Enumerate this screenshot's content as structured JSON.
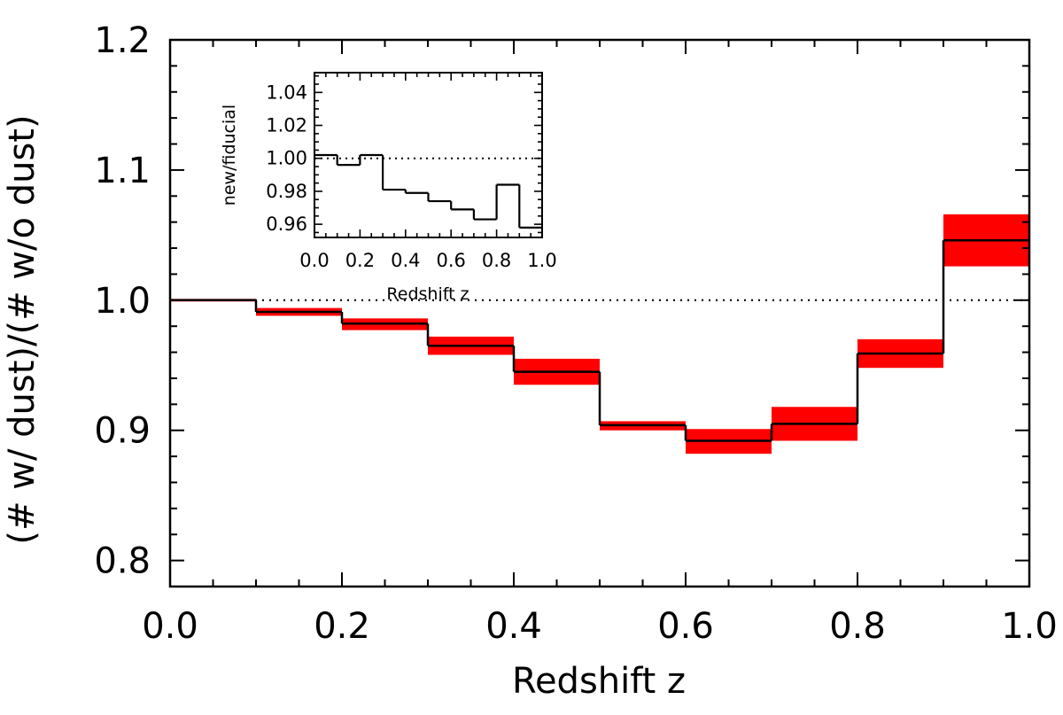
{
  "chart_data": [
    {
      "type": "step",
      "role": "main",
      "title": "",
      "xlabel": "Redshift z",
      "ylabel": "(# w/ dust)/(# w/o dust)",
      "xlim": [
        0.0,
        1.0
      ],
      "ylim": [
        0.78,
        1.2
      ],
      "xticks": [
        "0.0",
        "0.2",
        "0.4",
        "0.6",
        "0.8",
        "1.0"
      ],
      "yticks": [
        "0.8",
        "0.9",
        "1.0",
        "1.1",
        "1.2"
      ],
      "reference_line": 1.0,
      "bin_edges": [
        0.0,
        0.1,
        0.2,
        0.3,
        0.4,
        0.5,
        0.6,
        0.7,
        0.8,
        0.9,
        1.0
      ],
      "values": [
        1.0,
        0.991,
        0.982,
        0.965,
        0.945,
        0.904,
        0.892,
        0.905,
        0.959,
        1.046
      ],
      "err_low": [
        0.999,
        0.988,
        0.977,
        0.958,
        0.935,
        0.9,
        0.882,
        0.892,
        0.948,
        1.026
      ],
      "err_high": [
        1.001,
        0.994,
        0.986,
        0.972,
        0.955,
        0.907,
        0.901,
        0.918,
        0.97,
        1.066
      ],
      "band_color": "#ff0000",
      "line_color": "#000000"
    },
    {
      "type": "step",
      "role": "inset",
      "title": "",
      "xlabel": "Redshift z",
      "ylabel": "new/fiducial",
      "xlim": [
        0.0,
        1.0
      ],
      "ylim": [
        0.952,
        1.052
      ],
      "xticks": [
        "0.0",
        "0.2",
        "0.4",
        "0.6",
        "0.8",
        "1.0"
      ],
      "yticks": [
        "0.96",
        "0.98",
        "1.00",
        "1.02",
        "1.04"
      ],
      "reference_line": 1.0,
      "bin_edges": [
        0.0,
        0.1,
        0.2,
        0.3,
        0.4,
        0.5,
        0.6,
        0.7,
        0.8,
        0.9,
        1.0
      ],
      "values": [
        1.002,
        0.996,
        1.002,
        0.981,
        0.979,
        0.974,
        0.969,
        0.963,
        0.984,
        0.958
      ],
      "line_color": "#000000"
    }
  ]
}
